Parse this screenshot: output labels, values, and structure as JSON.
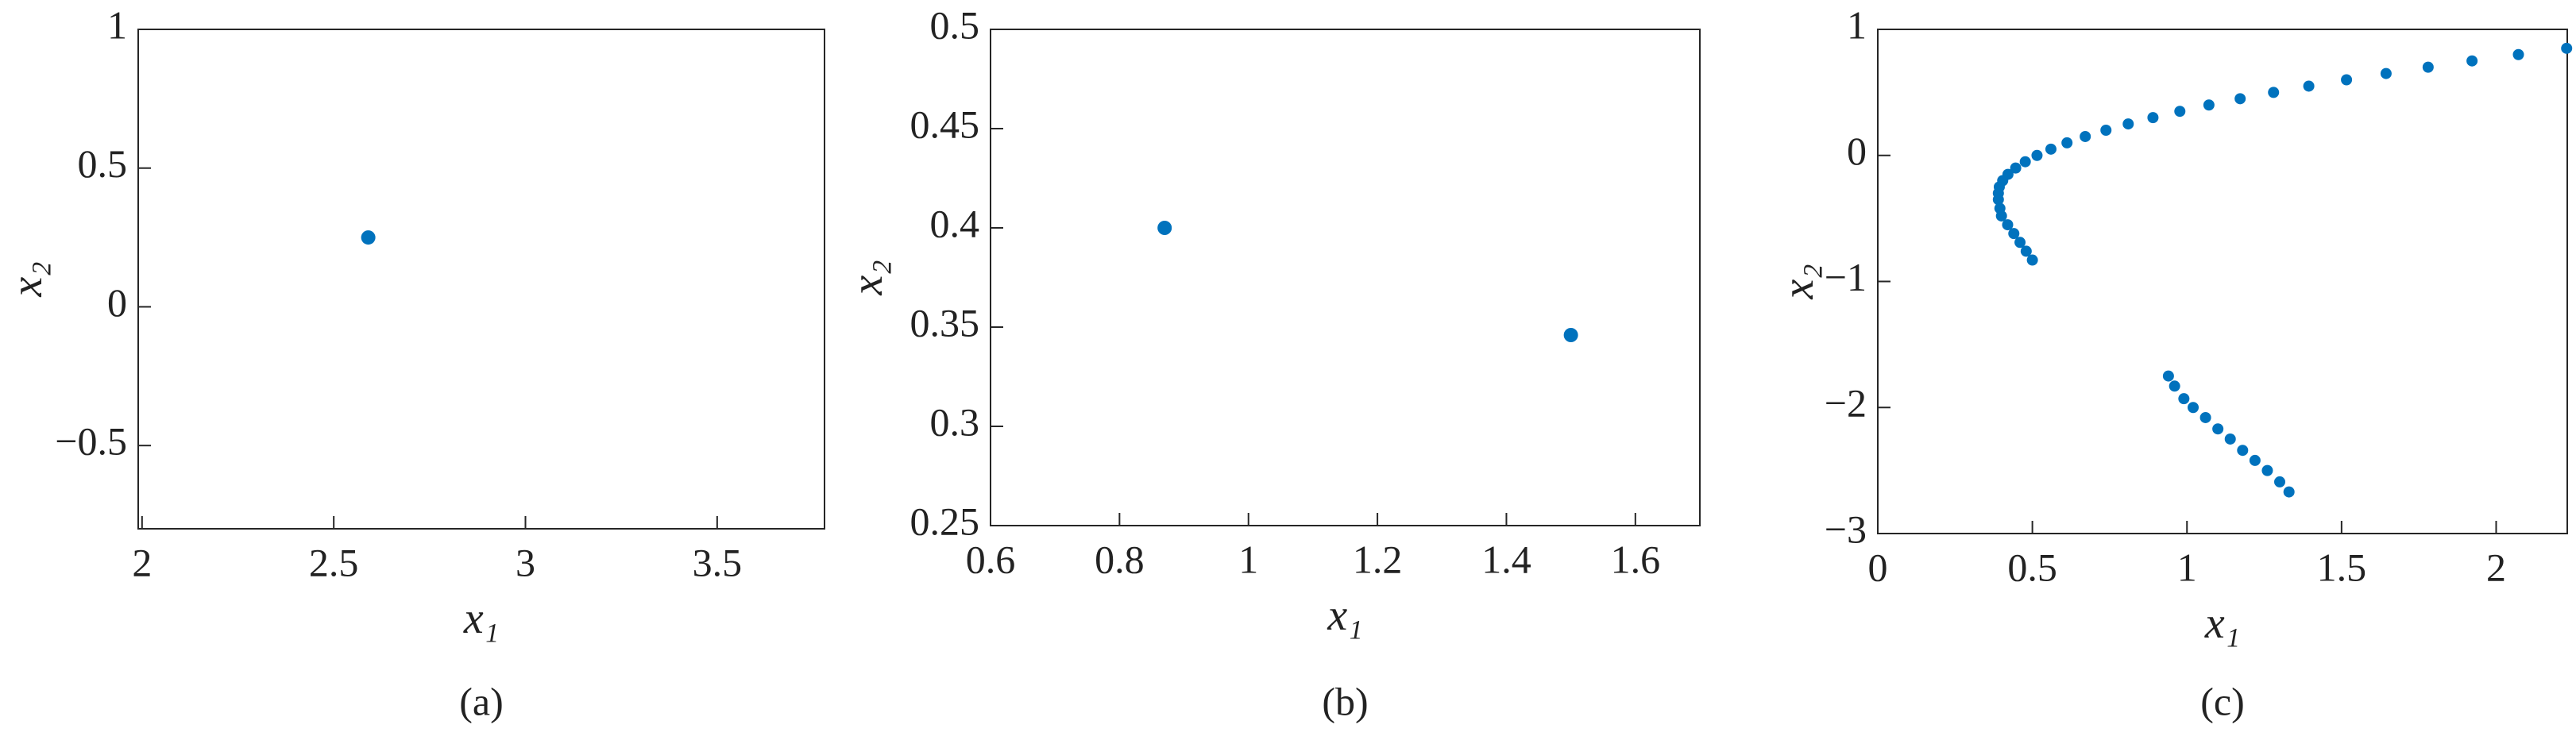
{
  "chart_data": [
    {
      "type": "scatter",
      "caption": "(a)",
      "xlabel": "x₁",
      "ylabel": "x₂",
      "color": "#0072bd",
      "xlim": [
        1.99,
        3.78
      ],
      "ylim": [
        -0.8,
        1
      ],
      "xticks": [
        2,
        2.5,
        3,
        3.5
      ],
      "yticks": [
        {
          "value": -0.5,
          "label": "−0.5"
        },
        0,
        0.5,
        1
      ],
      "x": [
        2.59
      ],
      "y": [
        0.25
      ]
    },
    {
      "type": "scatter",
      "caption": "(b)",
      "xlabel": "x₁",
      "ylabel": "x₂",
      "color": "#0072bd",
      "xlim": [
        0.6,
        1.7
      ],
      "ylim": [
        0.25,
        0.5
      ],
      "xticks": [
        0.6,
        0.8,
        1,
        1.2,
        1.4,
        1.6
      ],
      "yticks": [
        0.25,
        0.3,
        0.35,
        0.4,
        0.45,
        0.5
      ],
      "x": [
        0.87,
        1.5
      ],
      "y": [
        0.4,
        0.346
      ]
    },
    {
      "type": "scatter",
      "caption": "(c)",
      "xlabel": "x₁",
      "ylabel": "x₂",
      "color": "#0072bd",
      "xlim": [
        0,
        2.23
      ],
      "ylim": [
        -3,
        1
      ],
      "xticks": [
        0,
        0.5,
        1,
        1.5,
        2
      ],
      "yticks": [
        {
          "value": -3,
          "label": "−3"
        },
        {
          "value": -2,
          "label": "−2"
        },
        {
          "value": -1,
          "label": "−1"
        },
        0,
        1
      ],
      "x": [
        0.39,
        0.393,
        0.404,
        0.421,
        0.446,
        0.477,
        0.515,
        0.56,
        0.612,
        0.671,
        0.738,
        0.81,
        0.89,
        0.977,
        1.071,
        1.172,
        1.28,
        1.394,
        1.516,
        1.644,
        1.78,
        1.922,
        2.072,
        2.228,
        0.39,
        0.395,
        0.4,
        0.42,
        0.44,
        0.46,
        0.48,
        0.5,
        0.94,
        0.96,
        0.99,
        1.02,
        1.06,
        1.1,
        1.14,
        1.18,
        1.22,
        1.26,
        1.3,
        1.33
      ],
      "y": [
        -0.3,
        -0.25,
        -0.2,
        -0.15,
        -0.1,
        -0.05,
        0,
        0.05,
        0.1,
        0.15,
        0.2,
        0.25,
        0.3,
        0.35,
        0.4,
        0.45,
        0.5,
        0.55,
        0.6,
        0.65,
        0.7,
        0.75,
        0.8,
        0.85,
        -0.35,
        -0.42,
        -0.48,
        -0.55,
        -0.62,
        -0.69,
        -0.76,
        -0.83,
        -1.75,
        -1.83,
        -1.93,
        -2.0,
        -2.08,
        -2.17,
        -2.25,
        -2.34,
        -2.42,
        -2.5,
        -2.59,
        -2.67
      ]
    }
  ]
}
